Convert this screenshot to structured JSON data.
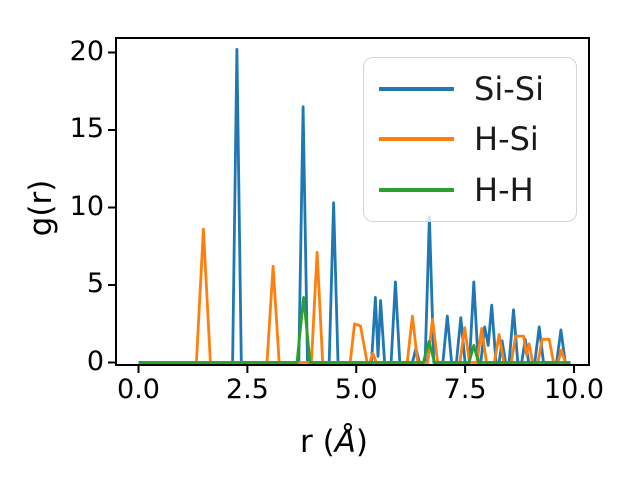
{
  "figure": {
    "background": "#ffffff",
    "axis_color": "#000000"
  },
  "chart_data": {
    "type": "line",
    "title": "",
    "ylabel": "g(r)",
    "xlabel": {
      "pre": "r (",
      "unit": "Å",
      "post": ")"
    },
    "xlabel_text": "r (Å)",
    "xlim": [
      -0.52,
      10.34
    ],
    "ylim": [
      0,
      20.9
    ],
    "grid": false,
    "legend_position": "upper right",
    "x_tick_values": [
      0.0,
      2.5,
      5.0,
      7.5,
      10.0
    ],
    "x_tick_labels": [
      "0.0",
      "2.5",
      "5.0",
      "7.5",
      "10.0"
    ],
    "y_tick_values": [
      0,
      5,
      10,
      15,
      20
    ],
    "y_tick_labels": [
      "0",
      "5",
      "10",
      "15",
      "20"
    ],
    "series": [
      {
        "name": "Si-Si",
        "color": "#1f77b4",
        "peaks_r": [
          2.26,
          3.78,
          4.48,
          5.44,
          5.56,
          5.9,
          6.37,
          6.68,
          7.09,
          7.4,
          7.7,
          7.95,
          8.11,
          8.35,
          8.61,
          8.88,
          9.2,
          9.7
        ],
        "peaks_g": [
          20.2,
          16.5,
          10.3,
          4.2,
          4.0,
          5.2,
          0.9,
          9.4,
          3.0,
          2.9,
          5.2,
          2.3,
          3.7,
          1.4,
          3.4,
          1.5,
          2.3,
          2.1
        ],
        "points": [
          [
            0,
            0
          ],
          [
            2.16,
            0
          ],
          [
            2.26,
            20.2
          ],
          [
            2.36,
            0
          ],
          [
            3.68,
            0
          ],
          [
            3.78,
            16.5
          ],
          [
            3.88,
            0
          ],
          [
            4.38,
            0
          ],
          [
            4.48,
            10.3
          ],
          [
            4.58,
            0
          ],
          [
            5.35,
            0
          ],
          [
            5.44,
            4.2
          ],
          [
            5.5,
            0.4
          ],
          [
            5.56,
            4.0
          ],
          [
            5.65,
            0
          ],
          [
            5.8,
            0
          ],
          [
            5.9,
            5.2
          ],
          [
            6.0,
            0
          ],
          [
            6.29,
            0
          ],
          [
            6.37,
            0.9
          ],
          [
            6.45,
            0
          ],
          [
            6.58,
            0
          ],
          [
            6.68,
            9.4
          ],
          [
            6.78,
            0
          ],
          [
            6.99,
            0
          ],
          [
            7.09,
            3.0
          ],
          [
            7.19,
            0
          ],
          [
            7.3,
            0
          ],
          [
            7.4,
            2.9
          ],
          [
            7.5,
            0
          ],
          [
            7.6,
            0
          ],
          [
            7.7,
            5.2
          ],
          [
            7.8,
            0
          ],
          [
            7.86,
            0
          ],
          [
            7.95,
            2.3
          ],
          [
            8.03,
            1.1
          ],
          [
            8.11,
            3.7
          ],
          [
            8.21,
            0
          ],
          [
            8.28,
            0
          ],
          [
            8.35,
            1.4
          ],
          [
            8.43,
            0
          ],
          [
            8.51,
            0
          ],
          [
            8.61,
            3.4
          ],
          [
            8.71,
            0
          ],
          [
            8.8,
            0
          ],
          [
            8.88,
            1.5
          ],
          [
            8.96,
            0
          ],
          [
            9.1,
            0
          ],
          [
            9.2,
            2.3
          ],
          [
            9.3,
            0
          ],
          [
            9.6,
            0
          ],
          [
            9.7,
            2.1
          ],
          [
            9.8,
            0
          ],
          [
            9.92,
            0
          ]
        ]
      },
      {
        "name": "H-Si",
        "color": "#ff7f0e",
        "peaks_r": [
          1.49,
          3.09,
          4.1,
          5.0,
          5.38,
          6.29,
          6.75,
          7.49,
          7.88,
          8.28,
          8.75,
          8.97,
          9.35,
          9.71
        ],
        "peaks_g": [
          8.6,
          6.2,
          7.1,
          2.5,
          0.6,
          3.0,
          2.8,
          2.25,
          2.2,
          1.8,
          1.7,
          1.2,
          1.5,
          0.8
        ],
        "points": [
          [
            0,
            0
          ],
          [
            1.33,
            0
          ],
          [
            1.49,
            8.6
          ],
          [
            1.65,
            0
          ],
          [
            2.95,
            0
          ],
          [
            3.09,
            6.2
          ],
          [
            3.23,
            0
          ],
          [
            3.97,
            0
          ],
          [
            4.1,
            7.1
          ],
          [
            4.23,
            0
          ],
          [
            4.86,
            0
          ],
          [
            4.96,
            2.5
          ],
          [
            5.1,
            2.35
          ],
          [
            5.25,
            0
          ],
          [
            5.31,
            0
          ],
          [
            5.38,
            0.6
          ],
          [
            5.46,
            0
          ],
          [
            6.17,
            0
          ],
          [
            6.29,
            3.0
          ],
          [
            6.41,
            0
          ],
          [
            6.64,
            0
          ],
          [
            6.75,
            2.8
          ],
          [
            6.87,
            0
          ],
          [
            7.38,
            0
          ],
          [
            7.49,
            2.25
          ],
          [
            7.6,
            0
          ],
          [
            7.77,
            0
          ],
          [
            7.88,
            2.2
          ],
          [
            7.99,
            0
          ],
          [
            8.17,
            0
          ],
          [
            8.28,
            1.8
          ],
          [
            8.39,
            0
          ],
          [
            8.56,
            0
          ],
          [
            8.66,
            1.7
          ],
          [
            8.84,
            1.7
          ],
          [
            8.91,
            0.5
          ],
          [
            8.97,
            1.2
          ],
          [
            9.05,
            0
          ],
          [
            9.17,
            0
          ],
          [
            9.27,
            1.5
          ],
          [
            9.43,
            1.5
          ],
          [
            9.53,
            0
          ],
          [
            9.63,
            0
          ],
          [
            9.71,
            0.8
          ],
          [
            9.8,
            0
          ],
          [
            9.92,
            0
          ]
        ]
      },
      {
        "name": "H-H",
        "color": "#2ca02c",
        "peaks_r": [
          3.79,
          6.67,
          7.7
        ],
        "peaks_g": [
          4.2,
          1.35,
          1.1
        ],
        "points": [
          [
            0,
            0
          ],
          [
            3.64,
            0
          ],
          [
            3.79,
            4.2
          ],
          [
            3.94,
            0
          ],
          [
            6.54,
            0
          ],
          [
            6.67,
            1.35
          ],
          [
            6.8,
            0
          ],
          [
            7.59,
            0
          ],
          [
            7.7,
            1.1
          ],
          [
            7.81,
            0
          ],
          [
            9.92,
            0
          ]
        ]
      }
    ]
  }
}
